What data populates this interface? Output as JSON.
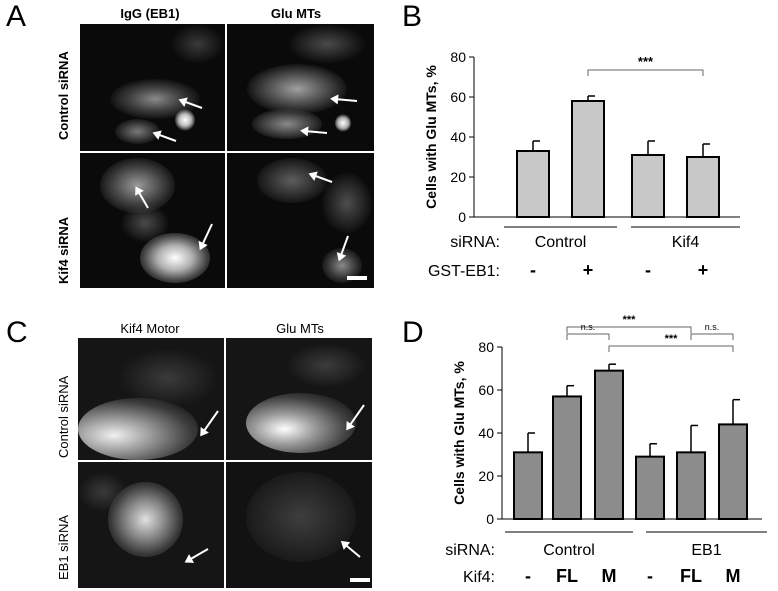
{
  "panels": {
    "A": {
      "letter": "A",
      "col_titles": [
        "IgG (EB1)",
        "Glu MTs"
      ],
      "row_labels": [
        "Control siRNA",
        "Kif4 siRNA"
      ]
    },
    "B": {
      "letter": "B",
      "ylabel": "Cells with Glu MTs, %",
      "yticks": [
        "0",
        "20",
        "40",
        "60",
        "80"
      ],
      "row1_label": "siRNA:",
      "row2_label": "GST-EB1:",
      "groups": [
        "Control",
        "Kif4"
      ],
      "treatment": [
        "-",
        "+",
        "-",
        "+"
      ],
      "significance": "***"
    },
    "C": {
      "letter": "C",
      "col_titles": [
        "Kif4 Motor",
        "Glu MTs"
      ],
      "row_labels": [
        "Control siRNA",
        "EB1 siRNA"
      ]
    },
    "D": {
      "letter": "D",
      "ylabel": "Cells with Glu MTs, %",
      "yticks": [
        "0",
        "20",
        "40",
        "60",
        "80"
      ],
      "row1_label": "siRNA:",
      "row2_label": "Kif4:",
      "groups": [
        "Control",
        "EB1"
      ],
      "treatment": [
        "-",
        "FL",
        "M",
        "-",
        "FL",
        "M"
      ],
      "sig_labels": [
        "***",
        "n.s.",
        "n.s.",
        "***"
      ]
    }
  },
  "chart_data": [
    {
      "type": "bar",
      "panel": "B",
      "ylabel": "Cells with Glu MTs, %",
      "ylim": [
        0,
        80
      ],
      "yticks": [
        0,
        20,
        40,
        60,
        80
      ],
      "categories": [
        "Control -",
        "Control +",
        "Kif4 -",
        "Kif4 +"
      ],
      "values": [
        33,
        58,
        31,
        30
      ],
      "errors": [
        5,
        2.5,
        7,
        6.5
      ],
      "bar_color": "#c8c8c8",
      "annotations": [
        {
          "from": 1,
          "to": 3,
          "label": "***"
        }
      ]
    },
    {
      "type": "bar",
      "panel": "D",
      "ylabel": "Cells with Glu MTs, %",
      "ylim": [
        0,
        80
      ],
      "yticks": [
        0,
        20,
        40,
        60,
        80
      ],
      "categories": [
        "Control -",
        "Control FL",
        "Control M",
        "EB1 -",
        "EB1 FL",
        "EB1 M"
      ],
      "values": [
        31,
        57,
        69,
        29,
        31,
        44
      ],
      "errors": [
        9,
        5,
        3,
        6,
        12.5,
        11.5
      ],
      "bar_color": "#8c8c8c",
      "annotations": [
        {
          "from": 1,
          "to": 4,
          "label": "***",
          "level": 2
        },
        {
          "from": 1,
          "to": 2,
          "label": "n.s.",
          "level": 1
        },
        {
          "from": 4,
          "to": 5,
          "label": "n.s.",
          "level": 1
        },
        {
          "from": 2,
          "to": 5,
          "label": "***",
          "level": 0
        }
      ]
    }
  ]
}
